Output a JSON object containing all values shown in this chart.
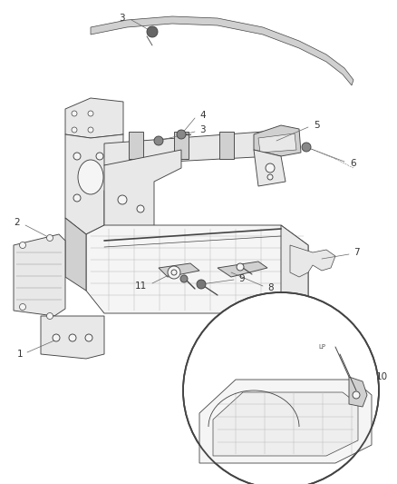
{
  "bg_color": "#ffffff",
  "fig_width": 4.38,
  "fig_height": 5.33,
  "dpi": 100,
  "line_color": "#444444",
  "light_gray": "#aaaaaa",
  "mid_gray": "#777777",
  "dark_gray": "#333333",
  "fill_light": "#e8e8e8",
  "fill_mid": "#d0d0d0",
  "fill_white": "#f5f5f5",
  "label_fs": 7.5,
  "lw": 0.65
}
